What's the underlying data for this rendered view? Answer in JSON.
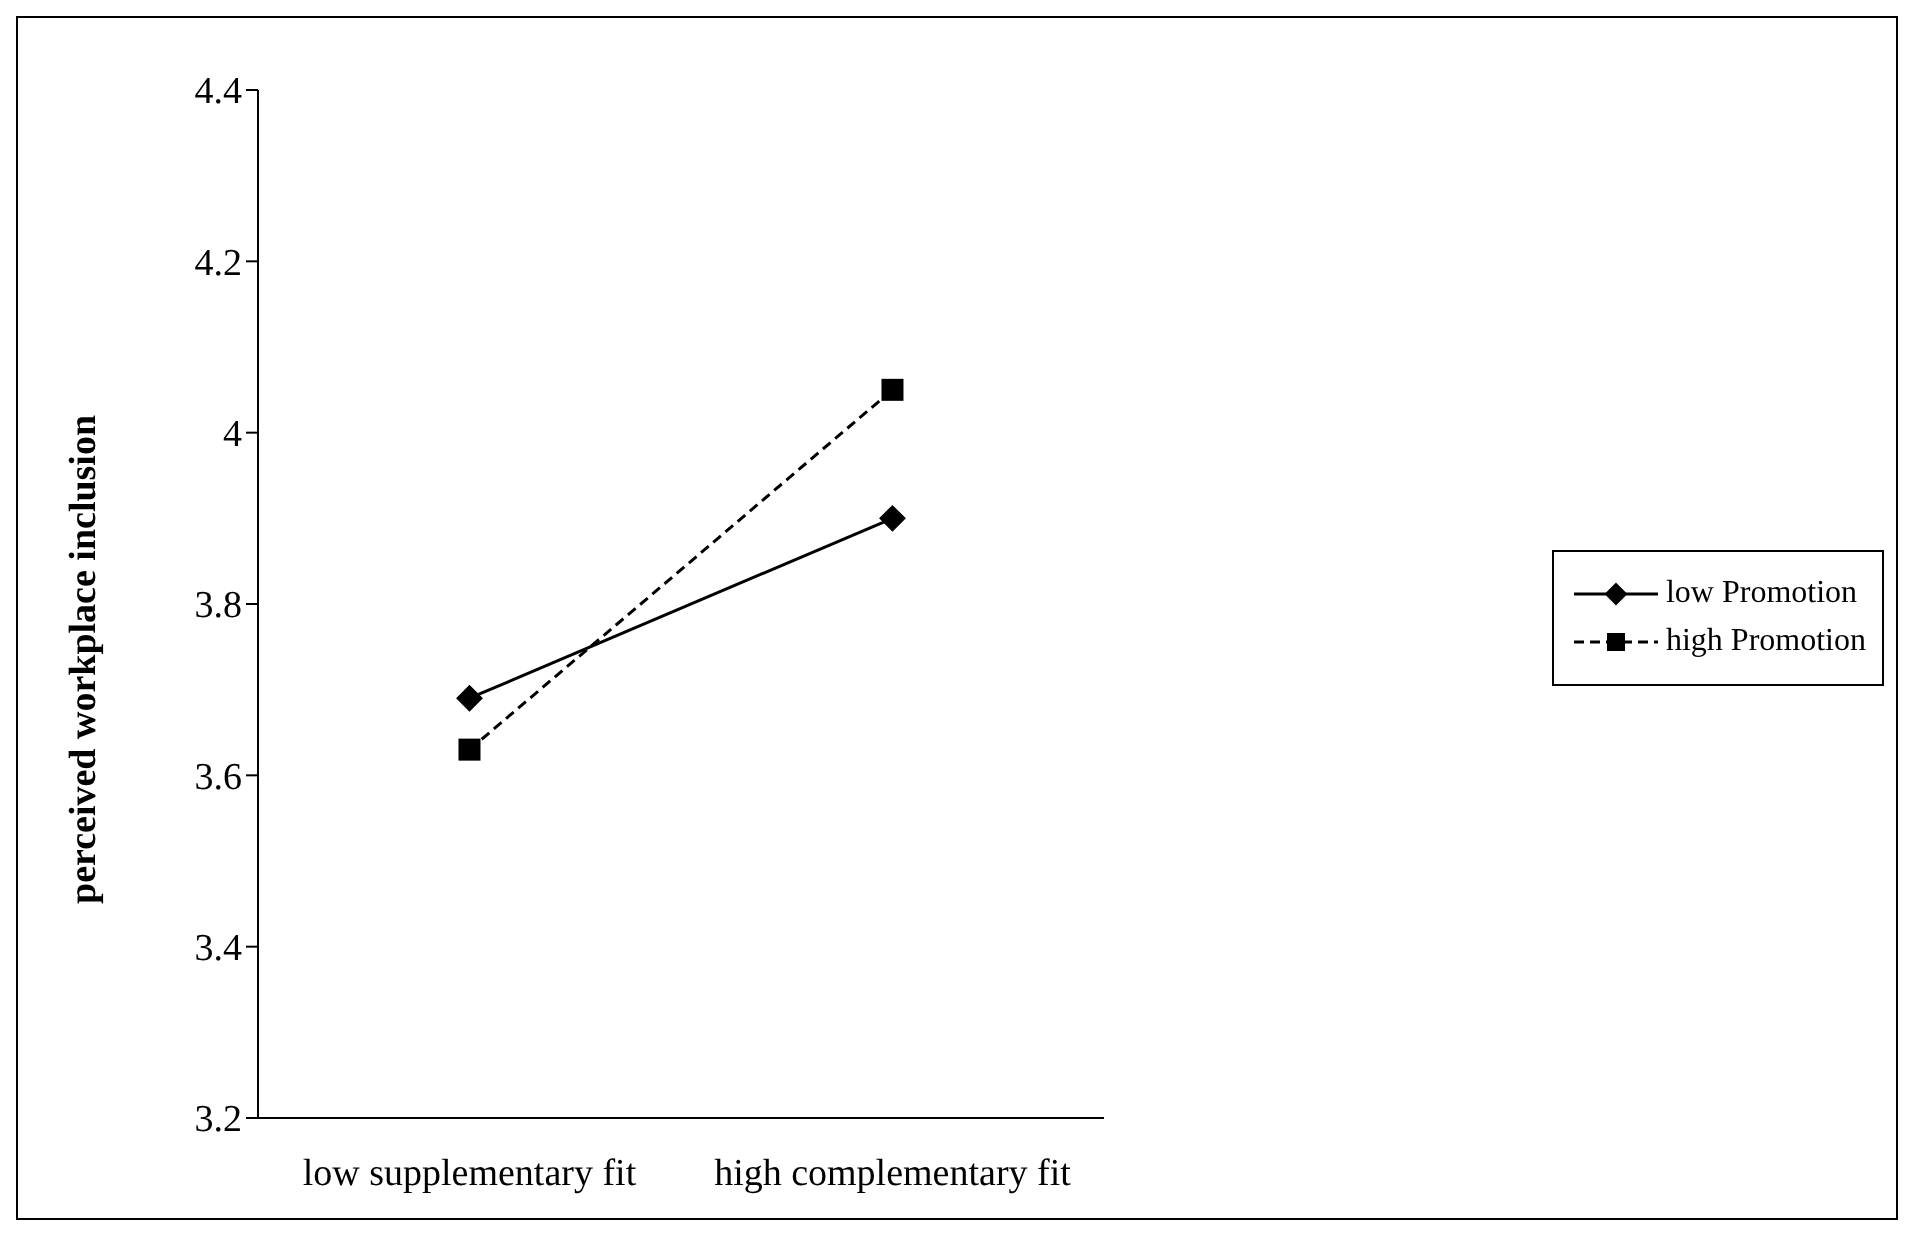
{
  "chart_data": {
    "type": "line",
    "ylabel": "perceived workplace inclusion",
    "categories": [
      "low supplementary fit",
      "high complementary fit"
    ],
    "series": [
      {
        "name": "low Promotion",
        "color": "#000000",
        "values": [
          3.69,
          3.9
        ],
        "marker": "diamond",
        "line_style": "solid"
      },
      {
        "name": "high Promotion",
        "color": "#000000",
        "values": [
          3.63,
          4.05
        ],
        "marker": "square",
        "line_style": "dashed"
      }
    ],
    "ylim": [
      3.2,
      4.4
    ],
    "yticks": [
      3.2,
      3.4,
      3.6,
      3.8,
      4,
      4.2,
      4.4
    ],
    "grid": false,
    "legend": "right"
  }
}
